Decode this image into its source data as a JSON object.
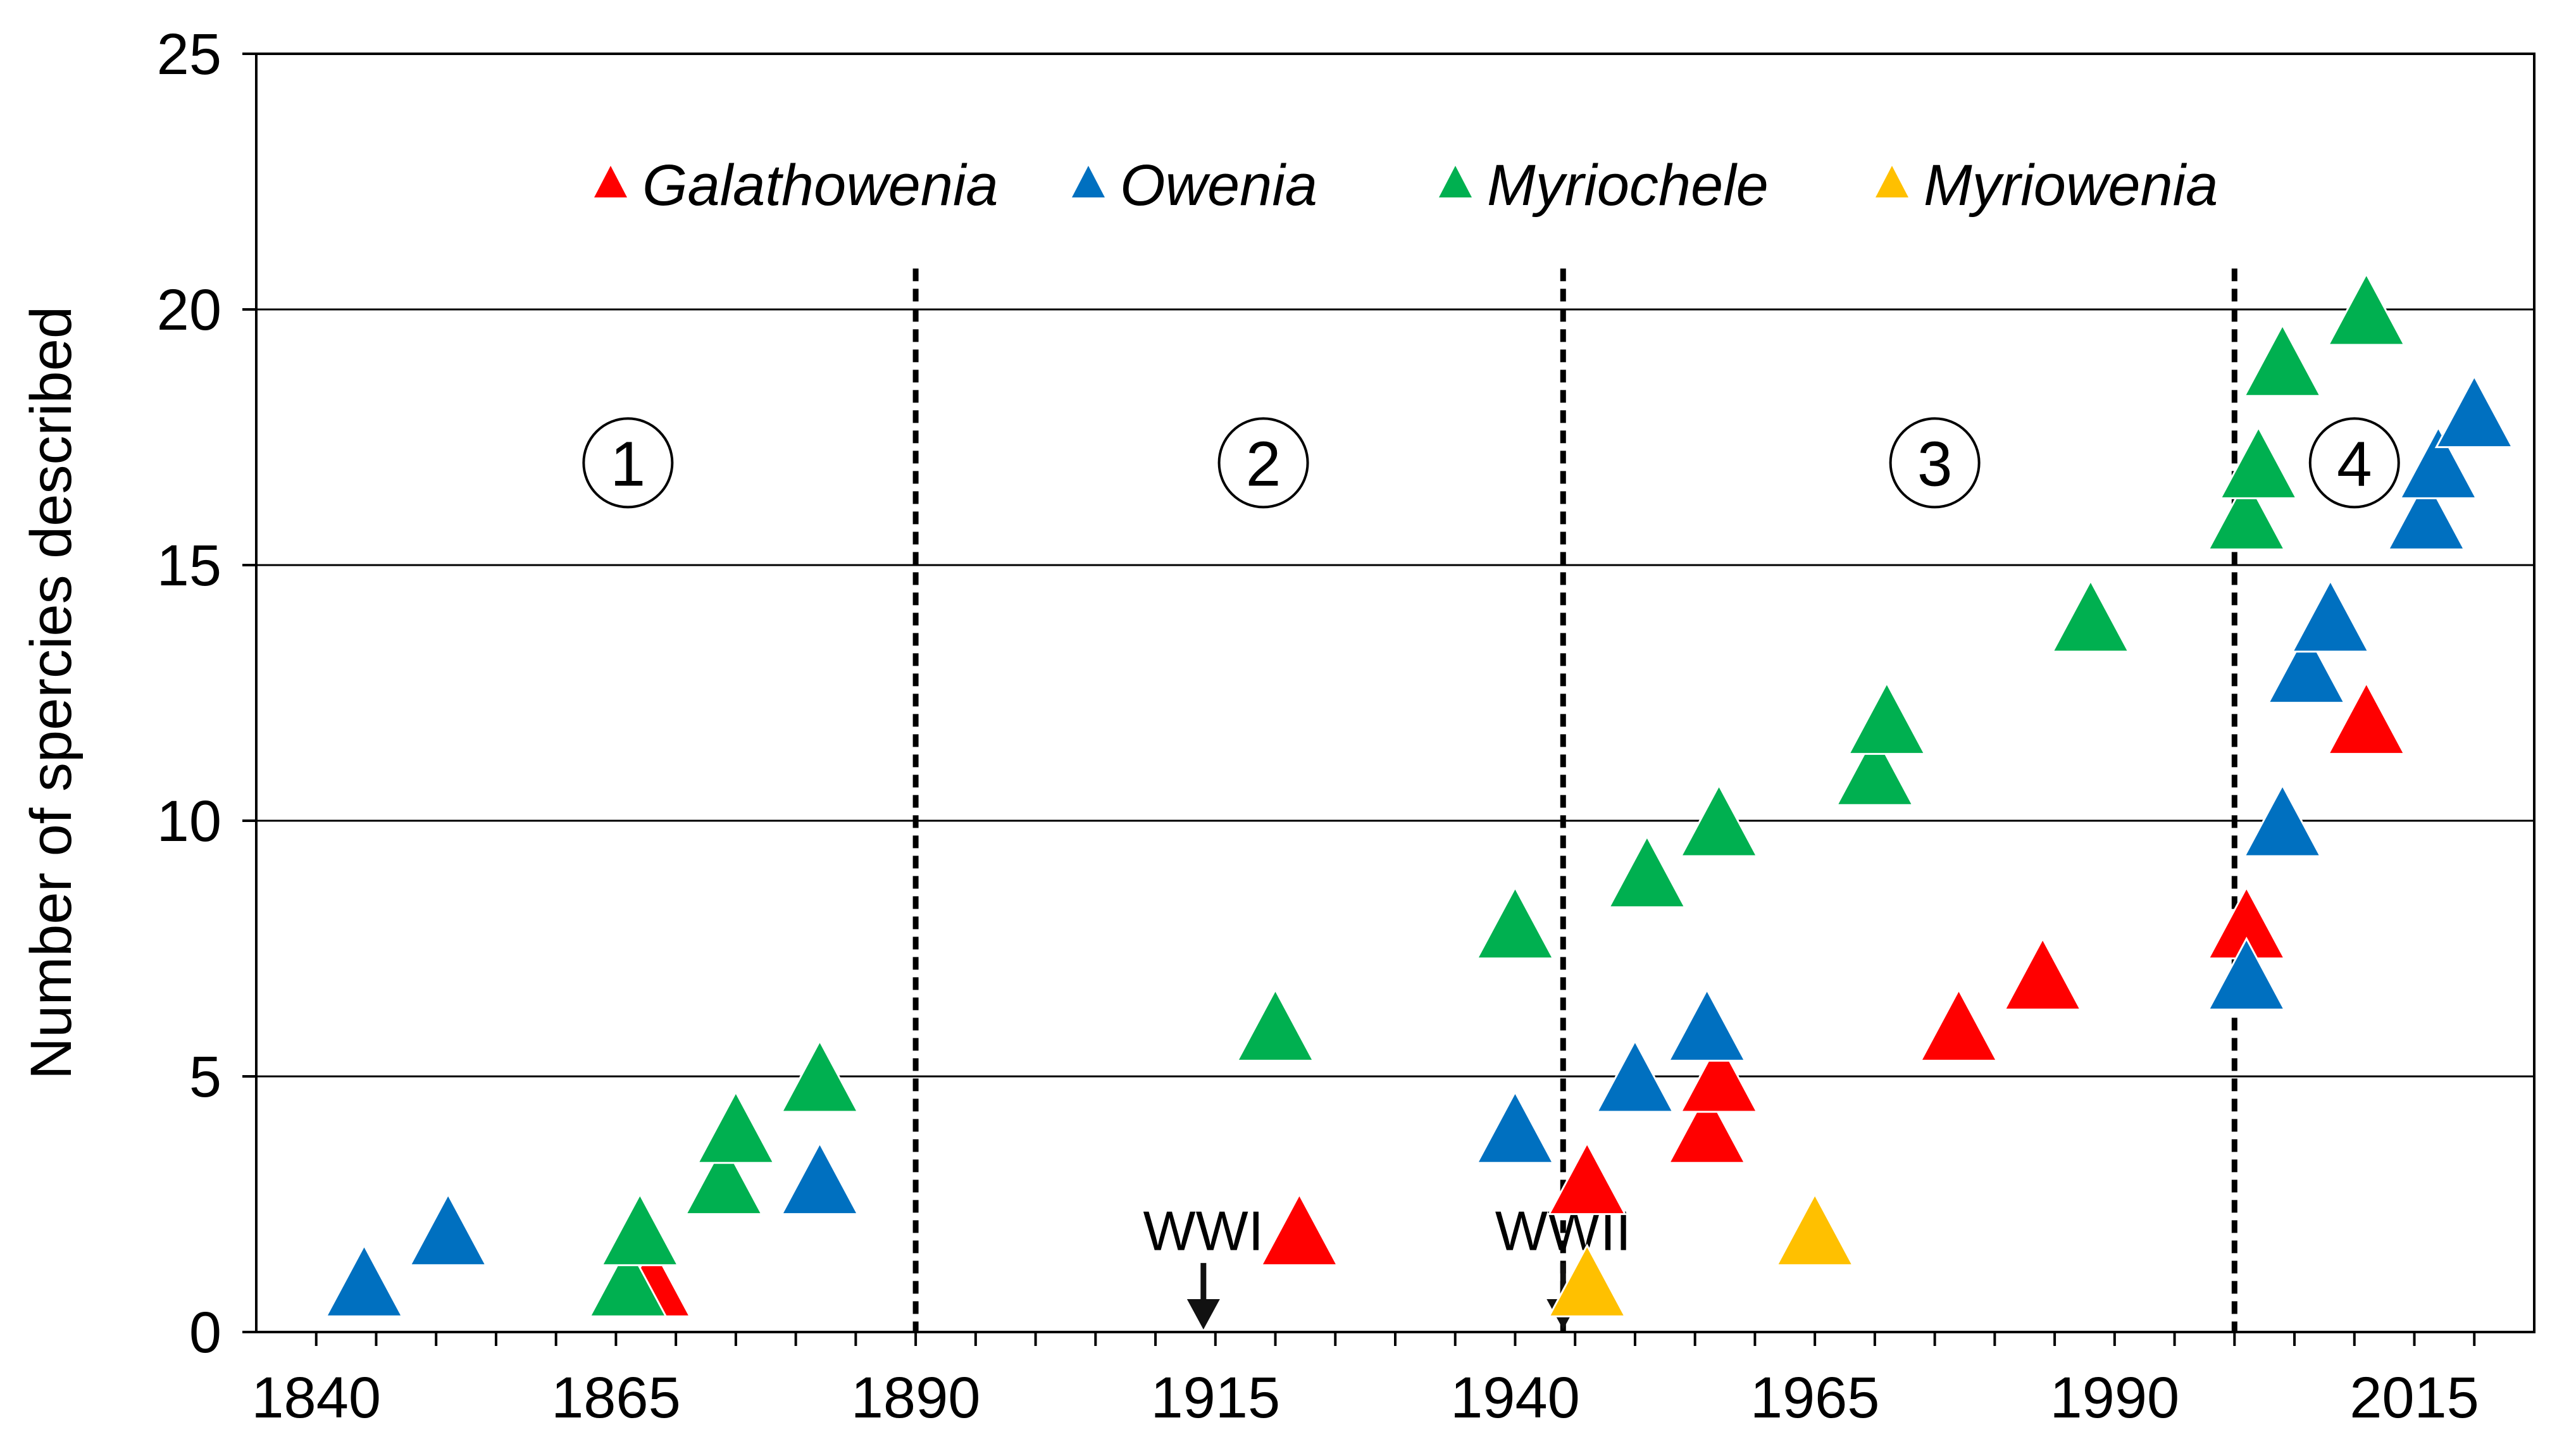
{
  "chart_data": {
    "type": "scatter",
    "title": "",
    "xlabel": "",
    "ylabel": "Number of spercies described",
    "xlim": [
      1835,
      2025
    ],
    "ylim": [
      0,
      25
    ],
    "xticks": [
      1840,
      1865,
      1890,
      1915,
      1940,
      1965,
      1990,
      2015
    ],
    "yticks": [
      0,
      5,
      10,
      15,
      20,
      25
    ],
    "grid": "horizontal",
    "legend_position": "top",
    "series": [
      {
        "name": "Galathowenia",
        "color": "#ff0000",
        "points": [
          {
            "x": 1868,
            "y": 1
          },
          {
            "x": 1922,
            "y": 2
          },
          {
            "x": 1946,
            "y": 3
          },
          {
            "x": 1956,
            "y": 4
          },
          {
            "x": 1957,
            "y": 5
          },
          {
            "x": 1977,
            "y": 6
          },
          {
            "x": 1984,
            "y": 7
          },
          {
            "x": 2001,
            "y": 8
          },
          {
            "x": 2011,
            "y": 12
          }
        ]
      },
      {
        "name": "Owenia",
        "color": "#0070c0",
        "points": [
          {
            "x": 1844,
            "y": 1
          },
          {
            "x": 1851,
            "y": 2
          },
          {
            "x": 1882,
            "y": 3
          },
          {
            "x": 1940,
            "y": 4
          },
          {
            "x": 1950,
            "y": 5
          },
          {
            "x": 1956,
            "y": 6
          },
          {
            "x": 2001,
            "y": 7
          },
          {
            "x": 2004,
            "y": 10
          },
          {
            "x": 2006,
            "y": 13
          },
          {
            "x": 2008,
            "y": 14
          },
          {
            "x": 2016,
            "y": 16
          },
          {
            "x": 2017,
            "y": 17
          },
          {
            "x": 2020,
            "y": 18
          }
        ]
      },
      {
        "name": "Myriochele",
        "color": "#00b050",
        "points": [
          {
            "x": 1866,
            "y": 1
          },
          {
            "x": 1867,
            "y": 2
          },
          {
            "x": 1874,
            "y": 3
          },
          {
            "x": 1875,
            "y": 4
          },
          {
            "x": 1882,
            "y": 5
          },
          {
            "x": 1920,
            "y": 6
          },
          {
            "x": 1940,
            "y": 8
          },
          {
            "x": 1951,
            "y": 9
          },
          {
            "x": 1957,
            "y": 10
          },
          {
            "x": 1970,
            "y": 11
          },
          {
            "x": 1971,
            "y": 12
          },
          {
            "x": 1988,
            "y": 14
          },
          {
            "x": 2001,
            "y": 16
          },
          {
            "x": 2002,
            "y": 17
          },
          {
            "x": 2004,
            "y": 19
          },
          {
            "x": 2011,
            "y": 20
          }
        ]
      },
      {
        "name": "Myriowenia",
        "color": "#ffc000",
        "points": [
          {
            "x": 1946,
            "y": 1
          },
          {
            "x": 1965,
            "y": 2
          }
        ]
      }
    ],
    "dividers": [
      1890,
      1944,
      2000
    ],
    "periods": [
      {
        "label": "1",
        "x": 1866,
        "y": 17
      },
      {
        "label": "2",
        "x": 1919,
        "y": 17
      },
      {
        "label": "3",
        "x": 1975,
        "y": 17
      },
      {
        "label": "4",
        "x": 2010,
        "y": 17
      }
    ],
    "events": [
      {
        "label": "WWI",
        "x": 1914
      },
      {
        "label": "WWII",
        "x": 1944
      }
    ]
  }
}
